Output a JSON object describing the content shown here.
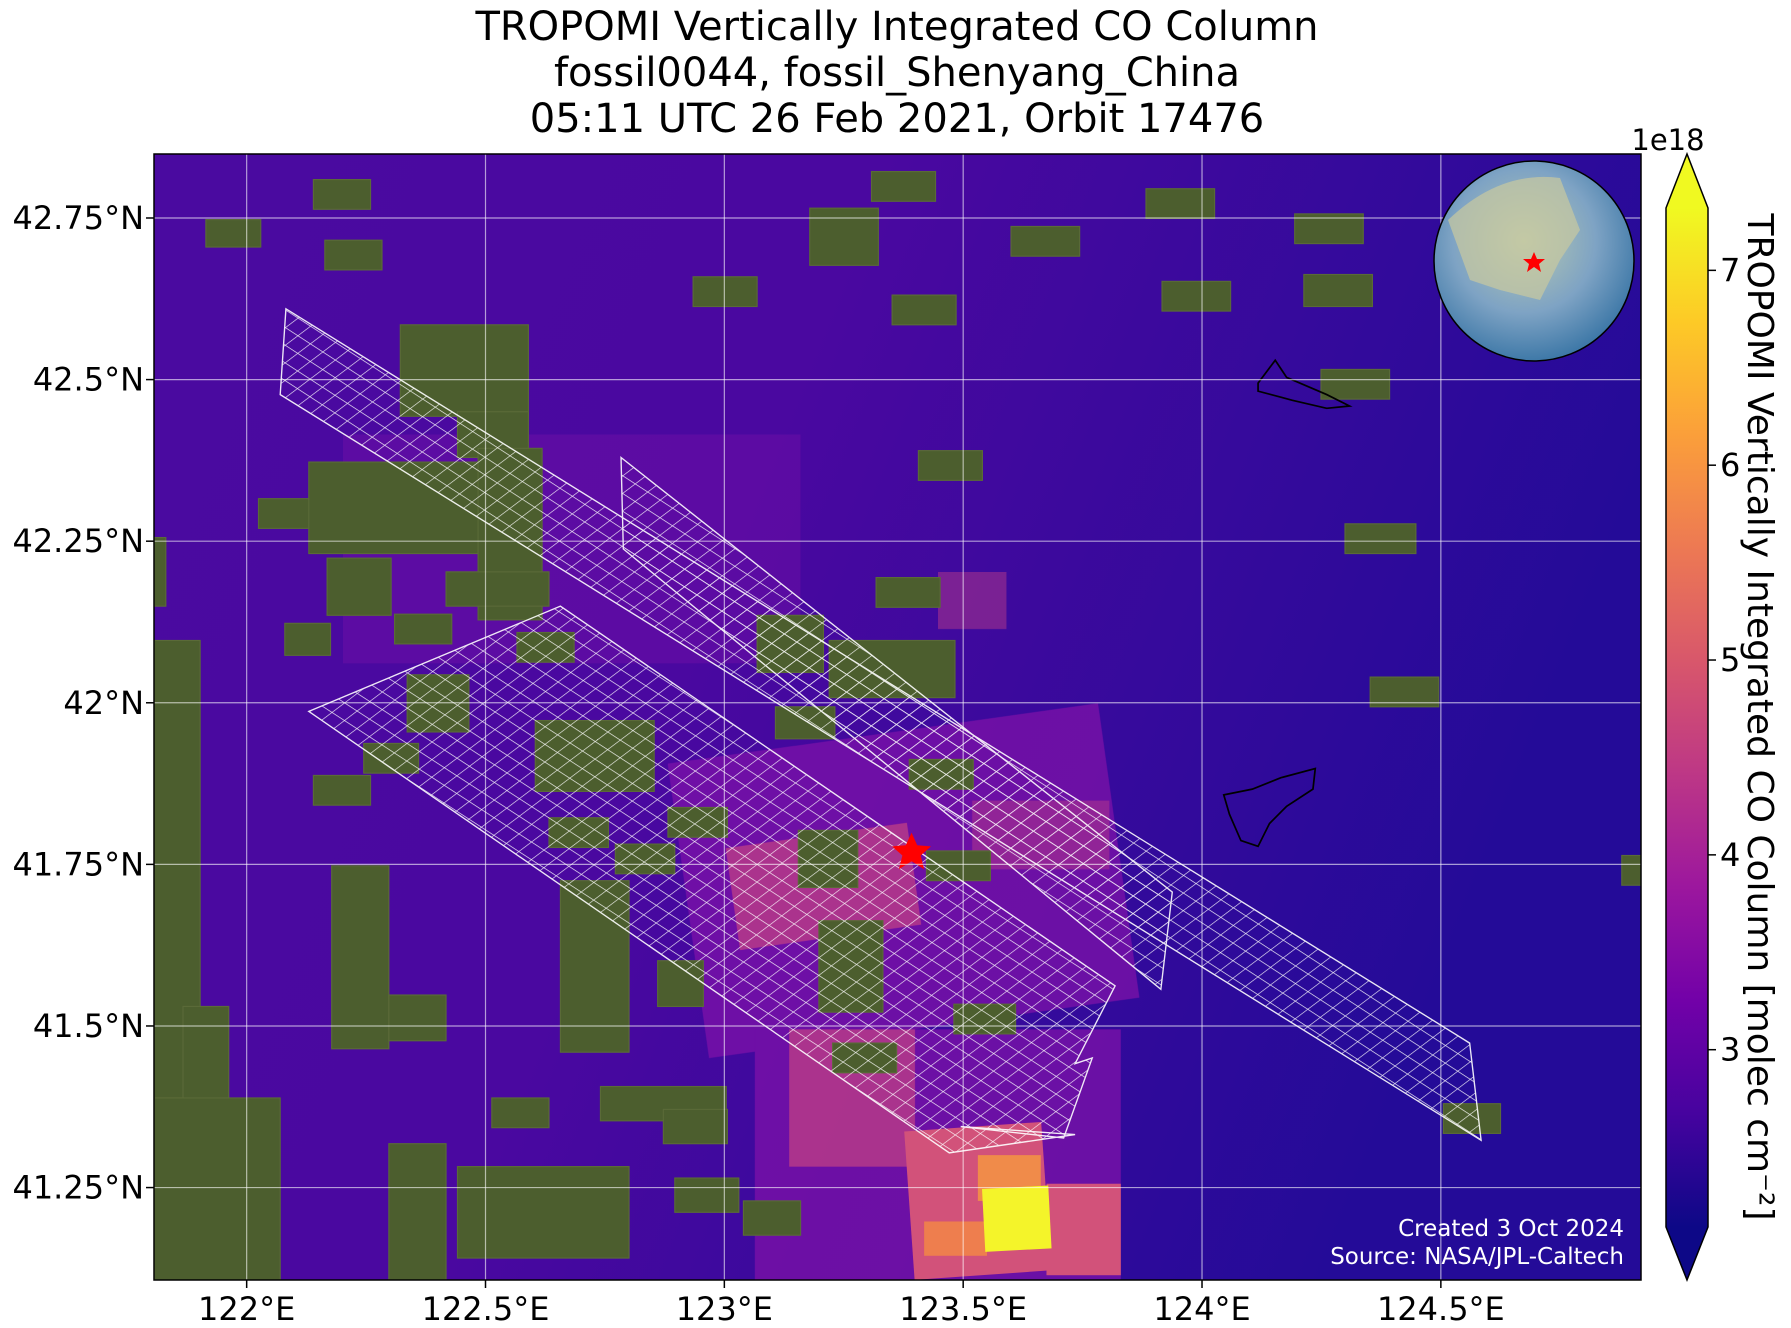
{
  "title": [
    "TROPOMI Vertically Integrated CO Column",
    "fossil0044, fossil_Shenyang_China",
    "05:11 UTC 26 Feb 2021, Orbit 17476"
  ],
  "map": {
    "xlim": [
      121.806,
      124.919
    ],
    "ylim": [
      41.107,
      42.849
    ],
    "xticks": [
      {
        "value": 122,
        "label": "122°E"
      },
      {
        "value": 122.5,
        "label": "122.5°E"
      },
      {
        "value": 123,
        "label": "123°E"
      },
      {
        "value": 123.5,
        "label": "123.5°E"
      },
      {
        "value": 124,
        "label": "124°E"
      },
      {
        "value": 124.5,
        "label": "124.5°E"
      }
    ],
    "yticks": [
      {
        "value": 41.25,
        "label": "41.25°N"
      },
      {
        "value": 41.5,
        "label": "41.5°N"
      },
      {
        "value": 41.75,
        "label": "41.75°N"
      },
      {
        "value": 42,
        "label": "42°N"
      },
      {
        "value": 42.25,
        "label": "42.25°N"
      },
      {
        "value": 42.5,
        "label": "42.5°N"
      },
      {
        "value": 42.75,
        "label": "42.75°N"
      }
    ],
    "grid": true
  },
  "colorbar": {
    "label": "TROPOMI Vertically Integrated CO Column [molec cm⁻²]",
    "offset_label": "1e18",
    "clim": [
      2.09,
      7.32
    ],
    "ticks": [
      3,
      4,
      5,
      6,
      7
    ],
    "colormap": "plasma"
  },
  "footer": [
    "Created 3 Oct 2024",
    "Source: NASA/JPL-Caltech"
  ]
}
